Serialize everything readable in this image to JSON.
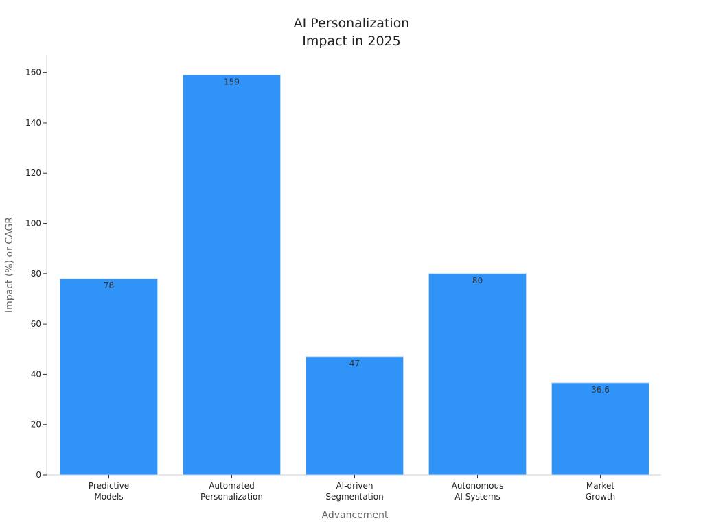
{
  "chart_data": {
    "type": "bar",
    "title_lines": [
      "AI Personalization",
      "Impact in 2025"
    ],
    "xlabel": "Advancement",
    "ylabel": "Impact (%) or CAGR",
    "categories": [
      [
        "Predictive",
        "Models"
      ],
      [
        "Automated",
        "Personalization"
      ],
      [
        "AI-driven",
        "Segmentation"
      ],
      [
        "Autonomous",
        "AI Systems"
      ],
      [
        "Market",
        "Growth"
      ]
    ],
    "values": [
      78,
      159,
      47,
      80,
      36.6
    ],
    "value_labels": [
      "78",
      "159",
      "47",
      "80",
      "36.6"
    ],
    "ylim": [
      0,
      167
    ],
    "yticks": [
      0,
      20,
      40,
      60,
      80,
      100,
      120,
      140,
      160
    ],
    "grid": false,
    "bar_color": "#2f93f8",
    "bar_edge_color": "#bcd9f7"
  }
}
